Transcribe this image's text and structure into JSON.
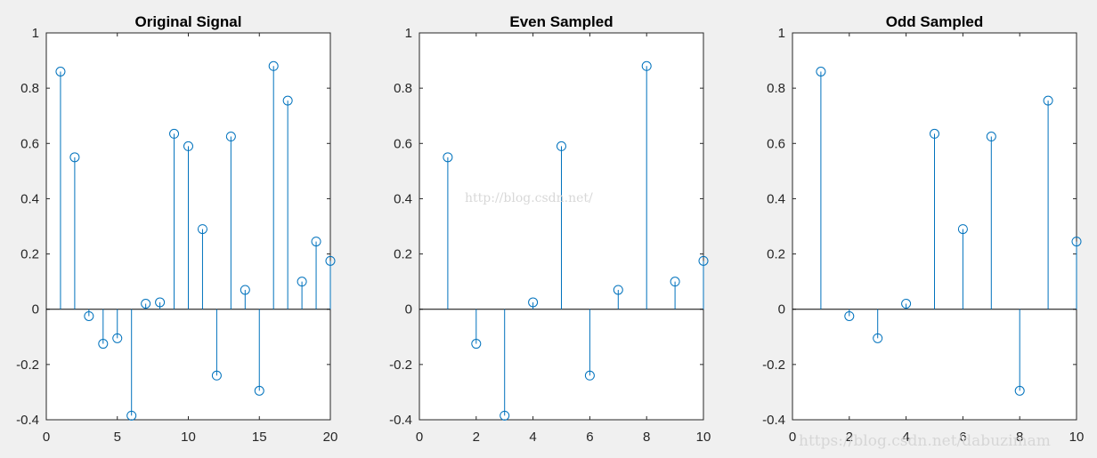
{
  "figure": {
    "background": "#f0f0f0",
    "stem_color": "#0072bd",
    "axes_color": "#262626",
    "baseline_color": "#000000"
  },
  "watermarks": {
    "center": "http://blog.csdn.net/",
    "corner": "https://blog.csdn.net/dabuzimam"
  },
  "chart_data": [
    {
      "type": "stem",
      "title": "Original Signal",
      "xlabel": "",
      "ylabel": "",
      "xlim": [
        0,
        20
      ],
      "ylim": [
        -0.4,
        1
      ],
      "xticks": [
        0,
        5,
        10,
        15,
        20
      ],
      "xtick_labels": [
        "0",
        "5",
        "10",
        "15",
        "20"
      ],
      "yticks": [
        -0.4,
        -0.2,
        0,
        0.2,
        0.4,
        0.6,
        0.8,
        1
      ],
      "ytick_labels": [
        "-0.4",
        "-0.2",
        "0",
        "0.2",
        "0.4",
        "0.6",
        "0.8",
        "1"
      ],
      "x": [
        1,
        2,
        3,
        4,
        5,
        6,
        7,
        8,
        9,
        10,
        11,
        12,
        13,
        14,
        15,
        16,
        17,
        18,
        19,
        20
      ],
      "values": [
        0.86,
        0.55,
        -0.025,
        -0.125,
        -0.105,
        -0.385,
        0.02,
        0.025,
        0.635,
        0.59,
        0.29,
        -0.24,
        0.625,
        0.07,
        -0.295,
        0.88,
        0.755,
        0.1,
        0.245,
        0.175
      ],
      "grid": false
    },
    {
      "type": "stem",
      "title": "Even Sampled",
      "xlabel": "",
      "ylabel": "",
      "xlim": [
        0,
        10
      ],
      "ylim": [
        -0.4,
        1
      ],
      "xticks": [
        0,
        2,
        4,
        6,
        8,
        10
      ],
      "xtick_labels": [
        "0",
        "2",
        "4",
        "6",
        "8",
        "10"
      ],
      "yticks": [
        -0.4,
        -0.2,
        0,
        0.2,
        0.4,
        0.6,
        0.8,
        1
      ],
      "ytick_labels": [
        "-0.4",
        "-0.2",
        "0",
        "0.2",
        "0.4",
        "0.6",
        "0.8",
        "1"
      ],
      "x": [
        1,
        2,
        3,
        4,
        5,
        6,
        7,
        8,
        9,
        10
      ],
      "values": [
        0.55,
        -0.125,
        -0.385,
        0.025,
        0.59,
        -0.24,
        0.07,
        0.88,
        0.1,
        0.175
      ],
      "grid": false
    },
    {
      "type": "stem",
      "title": "Odd Sampled",
      "xlabel": "",
      "ylabel": "",
      "xlim": [
        0,
        10
      ],
      "ylim": [
        -0.4,
        1
      ],
      "xticks": [
        0,
        2,
        4,
        6,
        8,
        10
      ],
      "xtick_labels": [
        "0",
        "2",
        "4",
        "6",
        "8",
        "10"
      ],
      "yticks": [
        -0.4,
        -0.2,
        0,
        0.2,
        0.4,
        0.6,
        0.8,
        1
      ],
      "ytick_labels": [
        "-0.4",
        "-0.2",
        "0",
        "0.2",
        "0.4",
        "0.6",
        "0.8",
        "1"
      ],
      "x": [
        1,
        2,
        3,
        4,
        5,
        6,
        7,
        8,
        9,
        10
      ],
      "values": [
        0.86,
        -0.025,
        -0.105,
        0.02,
        0.635,
        0.29,
        0.625,
        -0.295,
        0.755,
        0.245
      ],
      "grid": false
    }
  ]
}
